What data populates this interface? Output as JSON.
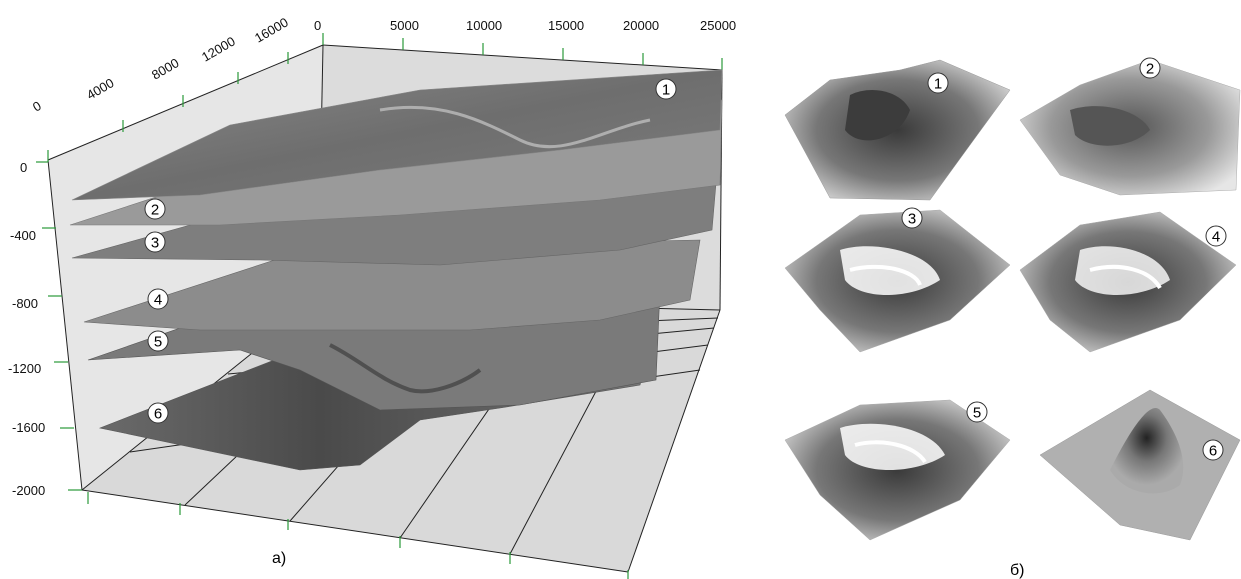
{
  "figure": {
    "panel_a": {
      "caption": "а)",
      "x_axis_ticks": [
        "0",
        "5000",
        "10000",
        "15000",
        "20000",
        "25000"
      ],
      "y_axis_ticks": [
        "0",
        "4000",
        "8000",
        "12000",
        "16000"
      ],
      "z_axis_ticks": [
        "0",
        "-400",
        "-800",
        "-1200",
        "-1600",
        "-2000"
      ],
      "surface_labels": [
        "1",
        "2",
        "3",
        "4",
        "5",
        "6"
      ]
    },
    "panel_b": {
      "caption": "б)",
      "thumbnail_labels": [
        "1",
        "2",
        "3",
        "4",
        "5",
        "6"
      ]
    }
  }
}
